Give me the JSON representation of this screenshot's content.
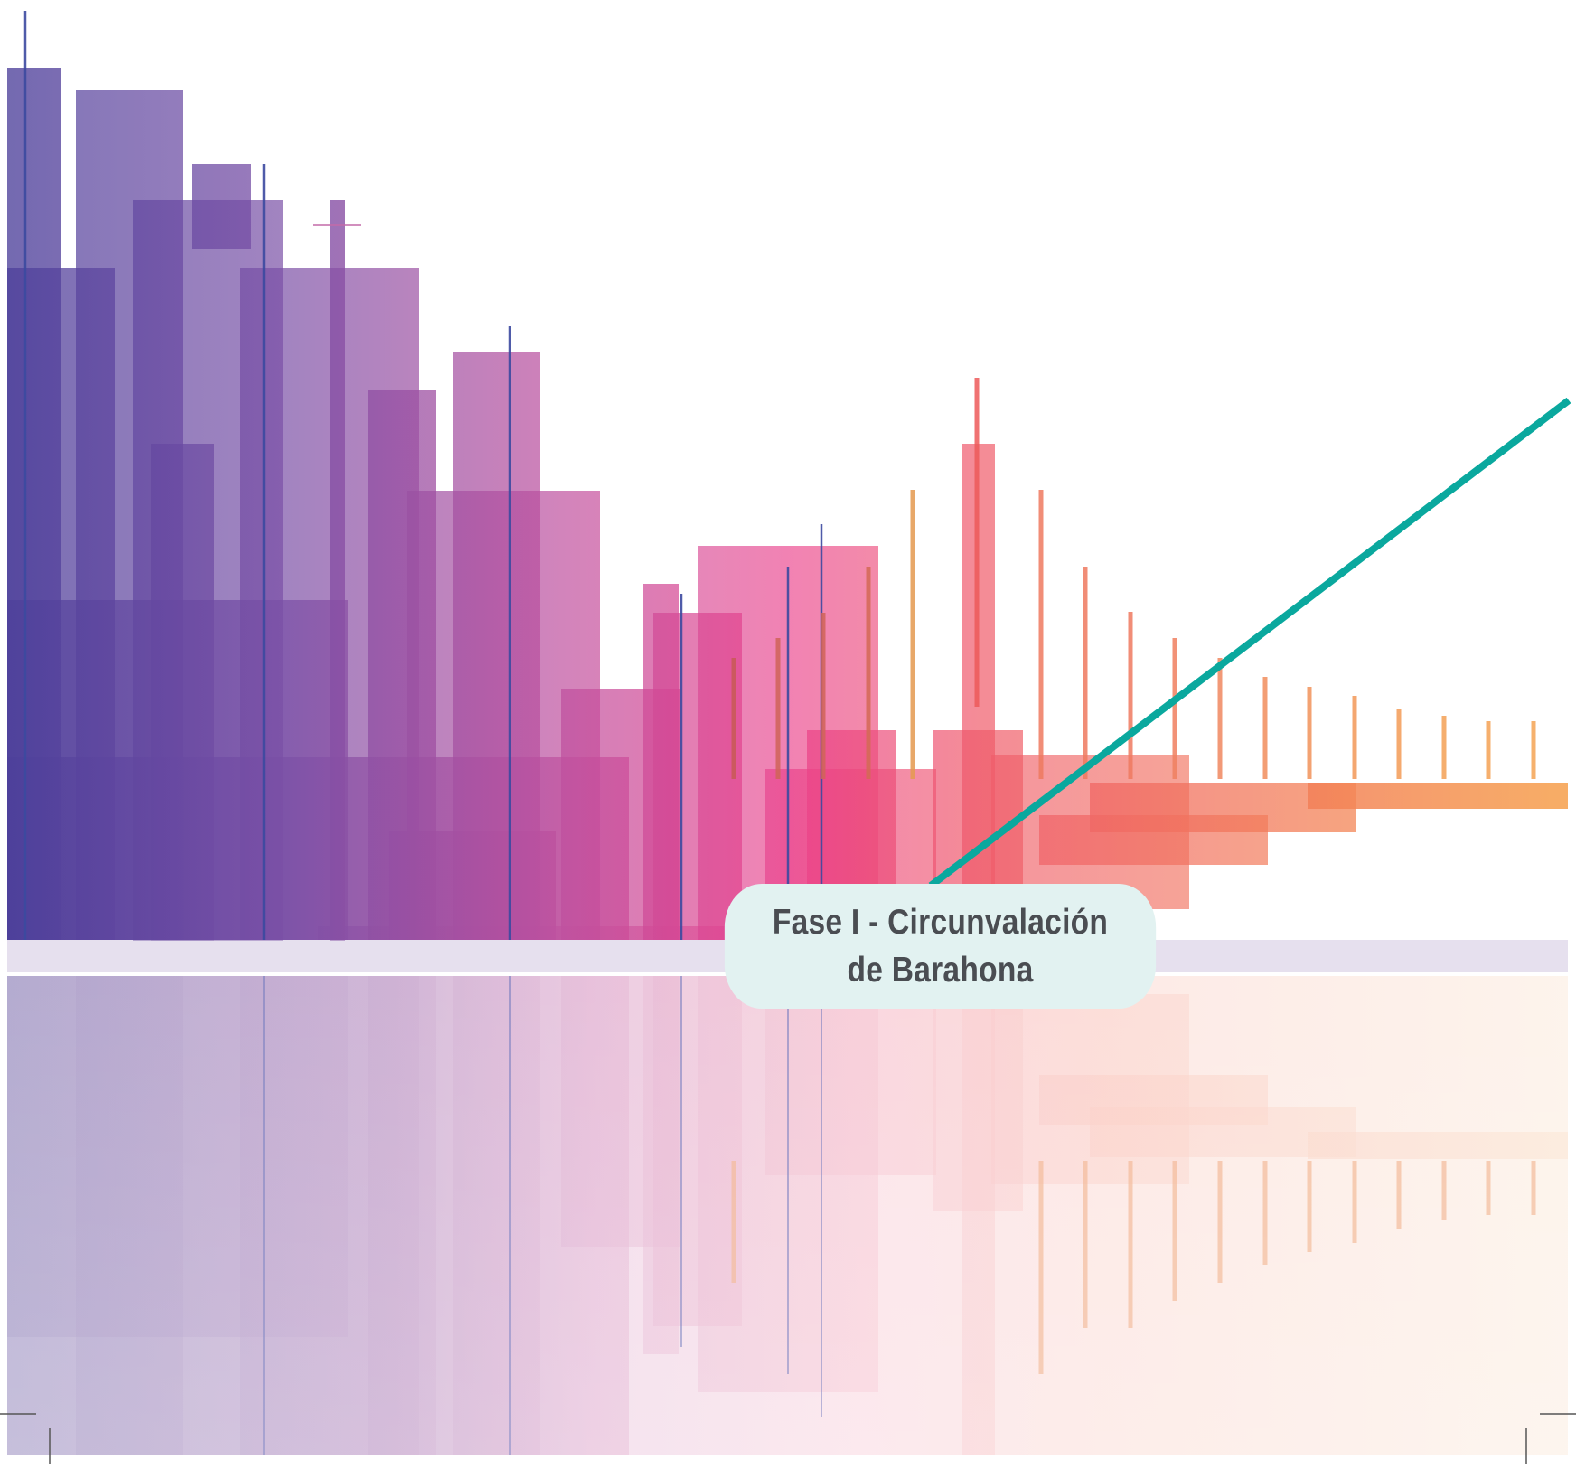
{
  "title": {
    "line1": "Fase I - Circunvalación",
    "line2": "de Barahona"
  },
  "colors": {
    "gradient_start": "#4b3f9a",
    "gradient_mid": "#e8428f",
    "gradient_end": "#f6a04a",
    "accent_line": "#0aa89e",
    "label_background": "#e2f2f1",
    "label_text": "#4a4d52"
  }
}
